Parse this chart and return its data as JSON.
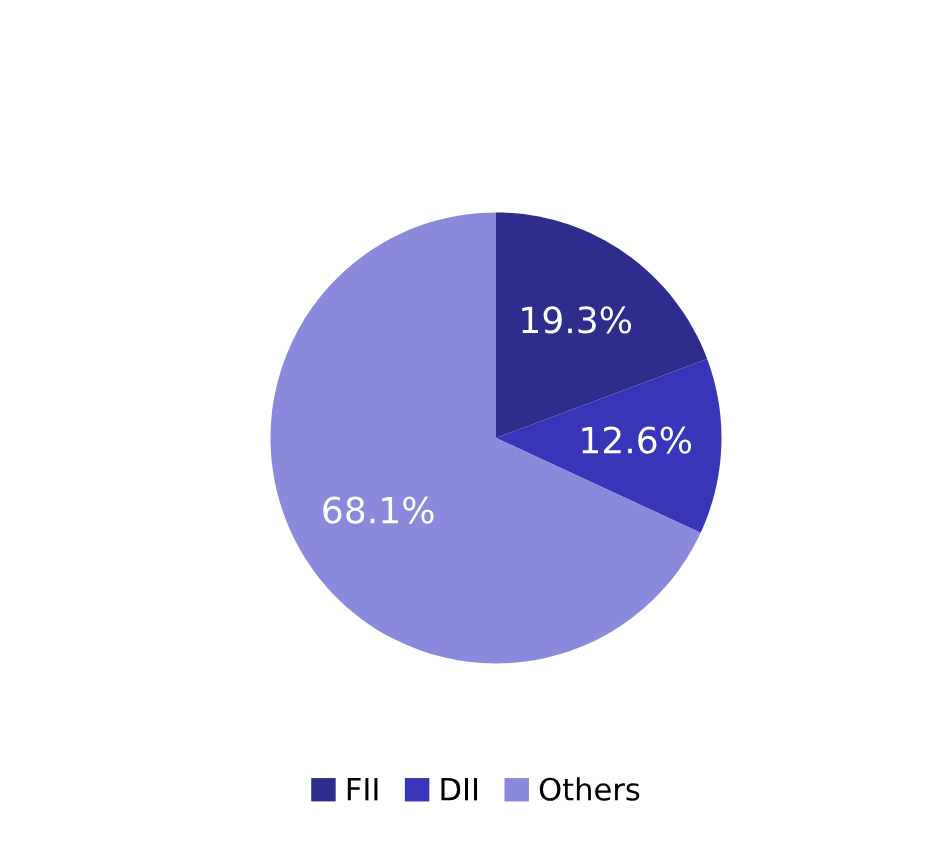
{
  "chart_data": {
    "type": "pie",
    "categories": [
      "FII",
      "DII",
      "Others"
    ],
    "values": [
      19.3,
      12.6,
      68.1
    ],
    "colors": [
      "#2e2d8e",
      "#3835b8",
      "#8a89dc"
    ],
    "value_labels": [
      "19.3%",
      "12.6%",
      "68.1%"
    ],
    "legend": "bottom"
  }
}
